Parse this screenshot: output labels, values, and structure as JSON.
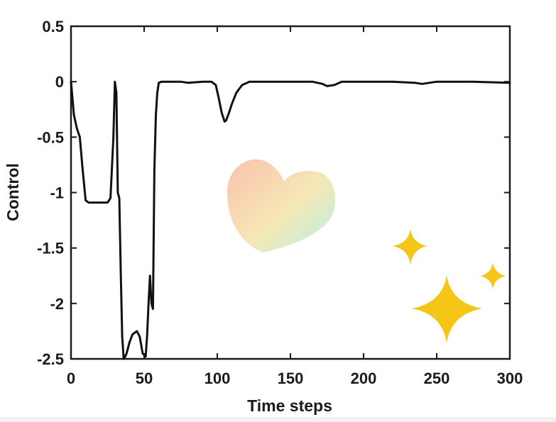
{
  "chart_data": {
    "type": "line",
    "title": "",
    "xlabel": "Time steps",
    "ylabel": "Control",
    "xlim": [
      0,
      300
    ],
    "ylim": [
      -2.5,
      0.5
    ],
    "xticks": [
      0,
      50,
      100,
      150,
      200,
      250,
      300
    ],
    "yticks": [
      0.5,
      0,
      -0.5,
      -1,
      -1.5,
      -2,
      -2.5
    ],
    "xtick_labels": [
      "0",
      "50",
      "100",
      "150",
      "200",
      "250",
      "300"
    ],
    "ytick_labels": [
      "0.5",
      "0",
      "-0.5",
      "-1",
      "-1.5",
      "-2",
      "-2.5"
    ],
    "grid": false,
    "legend": "none",
    "series": [
      {
        "color": "#111111",
        "x": [
          0,
          2,
          4,
          6,
          8,
          10,
          12,
          15,
          20,
          25,
          27,
          29,
          30,
          31,
          32,
          33,
          34,
          35,
          36,
          37,
          38,
          40,
          42,
          45,
          47,
          49,
          51,
          52,
          53,
          54,
          55,
          56,
          57,
          58,
          59,
          60,
          62,
          65,
          70,
          75,
          80,
          90,
          96,
          99,
          101,
          103,
          105,
          106,
          108,
          110,
          113,
          117,
          122,
          130,
          150,
          165,
          172,
          175,
          180,
          185,
          195,
          220,
          235,
          240,
          250,
          275,
          300
        ],
        "y": [
          0,
          -0.3,
          -0.42,
          -0.5,
          -0.8,
          -1.07,
          -1.09,
          -1.09,
          -1.09,
          -1.09,
          -1.05,
          -0.5,
          0,
          -0.1,
          -1.0,
          -1.05,
          -1.7,
          -2.3,
          -2.5,
          -2.48,
          -2.45,
          -2.35,
          -2.28,
          -2.25,
          -2.3,
          -2.45,
          -2.48,
          -2.3,
          -2.0,
          -1.75,
          -2.0,
          -2.05,
          -0.8,
          -0.3,
          -0.1,
          -0.01,
          0,
          0,
          0,
          0,
          -0.01,
          0,
          0,
          -0.03,
          -0.15,
          -0.28,
          -0.36,
          -0.35,
          -0.28,
          -0.2,
          -0.1,
          -0.03,
          0,
          0,
          0,
          0,
          -0.02,
          -0.04,
          -0.03,
          0,
          0,
          0,
          -0.01,
          -0.02,
          0,
          0,
          -0.01
        ]
      }
    ]
  },
  "decorations": [
    {
      "kind": "heart",
      "colors": [
        "#f9b7a0",
        "#f4e3a8",
        "#a8f0e0"
      ]
    },
    {
      "kind": "sparkle",
      "color": "#f5c518"
    },
    {
      "kind": "sparkle",
      "color": "#f5c518"
    },
    {
      "kind": "sparkle",
      "color": "#f5c518"
    }
  ]
}
